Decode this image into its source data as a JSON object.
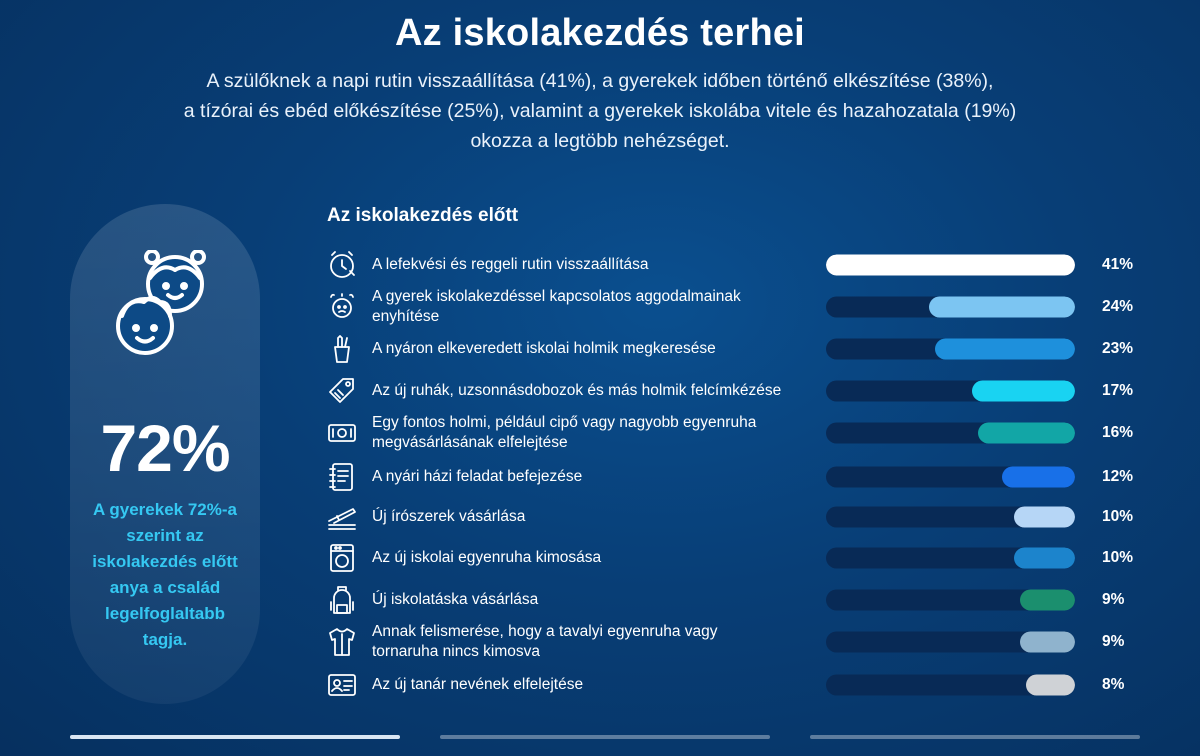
{
  "title": "Az iskolakezdés terhei",
  "subtitle_lines": [
    "A szülőknek a napi rutin visszaállítása (41%), a gyerekek időben történő elkészítése (38%),",
    "a tízórai és ebéd előkészítése (25%), valamint a gyerekek iskolába vitele és hazahozatala (19%)",
    "okozza a legtöbb nehézséget."
  ],
  "side_panel": {
    "percent": "72%",
    "note_lines": [
      "A gyerekek 72%-a",
      "szerint az",
      "iskolakezdés előtt",
      "anya a család",
      "legelfoglaltabb",
      "tagja."
    ]
  },
  "chart_data": {
    "type": "bar",
    "orientation": "horizontal",
    "title": "Az iskolakezdés előtt",
    "xlim": [
      0,
      41
    ],
    "categories": [
      "A lefekvési és reggeli rutin visszaállítása",
      "A gyerek iskolakezdéssel kapcsolatos aggodalmainak enyhítése",
      "A nyáron elkeveredett iskolai holmik megkeresése",
      "Az új ruhák, uzsonnásdobozok és más holmik felcímkézése",
      "Egy fontos holmi, például cipő vagy nagyobb egyenruha megvásárlásának elfelejtése",
      "A nyári házi feladat befejezése",
      "Új írószerek vásárlása",
      "Az új iskolai egyenruha kimosása",
      "Új iskolatáska vásárlása",
      "Annak felismerése, hogy a tavalyi egyenruha vagy tornaruha nincs kimosva",
      "Az új tanár nevének elfelejtése"
    ],
    "values": [
      41,
      24,
      23,
      17,
      16,
      12,
      10,
      10,
      9,
      9,
      8
    ],
    "value_labels": [
      "41%",
      "24%",
      "23%",
      "17%",
      "16%",
      "12%",
      "10%",
      "10%",
      "9%",
      "9%",
      "8%"
    ],
    "label_lines": [
      [
        "A lefekvési és reggeli rutin visszaállítása"
      ],
      [
        "A gyerek iskolakezdéssel kapcsolatos aggodalmainak enyhítése"
      ],
      [
        "A nyáron elkeveredett iskolai holmik megkeresése"
      ],
      [
        "Az új ruhák, uzsonnásdobozok és más holmik felcímkézése"
      ],
      [
        "Egy fontos holmi, például cipő vagy nagyobb egyenruha",
        "megvásárlásának elfelejtése"
      ],
      [
        "A nyári házi feladat befejezése"
      ],
      [
        "Új írószerek vásárlása"
      ],
      [
        "Az új iskolai egyenruha kimosása"
      ],
      [
        "Új iskolatáska vásárlása"
      ],
      [
        "Annak felismerése, hogy a tavalyi egyenruha vagy",
        "tornaruha nincs kimosva"
      ],
      [
        "Az új tanár nevének elfelejtése"
      ]
    ],
    "colors": [
      "#ffffff",
      "#7cc5f2",
      "#1e90dc",
      "#19d3f2",
      "#12a6a6",
      "#1870e8",
      "#b6d6f6",
      "#1c84cc",
      "#1b8f6e",
      "#8fb3cd",
      "#cfd2d6"
    ],
    "icons": [
      "alarm-clock-icon",
      "worried-face-icon",
      "pencil-cup-icon",
      "tag-icon",
      "banknote-icon",
      "notebook-icon",
      "stapler-icon",
      "washing-machine-icon",
      "backpack-icon",
      "shirt-icon",
      "id-card-icon"
    ],
    "track_color": "#082a56"
  }
}
